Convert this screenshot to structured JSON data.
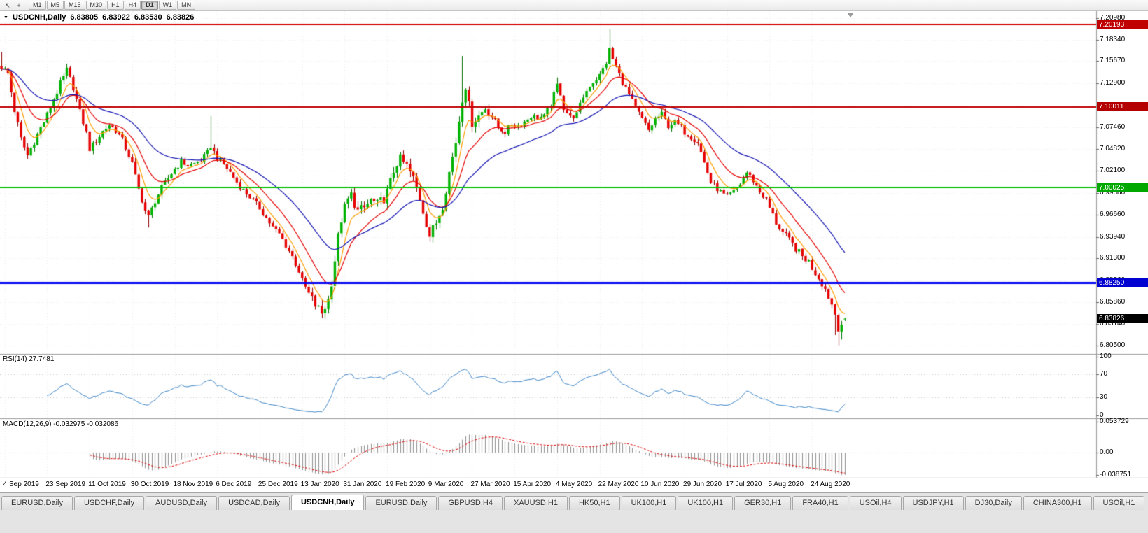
{
  "toolbar": {
    "icons": [
      {
        "name": "cursor-icon",
        "glyph": "↖"
      },
      {
        "name": "crosshair-icon",
        "glyph": "+"
      }
    ],
    "timeframes": [
      "M1",
      "M5",
      "M15",
      "M30",
      "H1",
      "H4",
      "D1",
      "W1",
      "MN"
    ],
    "active_timeframe": "D1"
  },
  "chart_header": {
    "collapse_glyph": "▼",
    "symbol_title": "USDCNH,Daily",
    "open": "6.83805",
    "high": "6.83922",
    "low": "6.83530",
    "close": "6.83826"
  },
  "chart_data": {
    "type": "candlestick",
    "symbol": "USDCNH",
    "period": "Daily",
    "title": "USDCNH,Daily",
    "last_ohlc": {
      "open": 6.83805,
      "high": 6.83922,
      "low": 6.8353,
      "close": 6.83826
    },
    "candle_count": 259,
    "candles_per_date_tick": 13,
    "price_axis_ticks": [
      "7.20980",
      "7.18340",
      "7.15670",
      "7.12900",
      "7.10170",
      "7.07460",
      "7.04820",
      "7.02100",
      "6.99380",
      "6.96660",
      "6.93940",
      "6.91300",
      "6.88560",
      "6.85860",
      "6.83140",
      "6.80500"
    ],
    "date_axis_ticks": [
      "4 Sep 2019",
      "23 Sep 2019",
      "11 Oct 2019",
      "30 Oct 2019",
      "18 Nov 2019",
      "6 Dec 2019",
      "25 Dec 2019",
      "13 Jan 2020",
      "31 Jan 2020",
      "19 Feb 2020",
      "9 Mar 2020",
      "27 Mar 2020",
      "15 Apr 2020",
      "4 May 2020",
      "22 May 2020",
      "10 Jun 2020",
      "29 Jun 2020",
      "17 Jul 2020",
      "5 Aug 2020",
      "24 Aug 2020"
    ],
    "horizontal_levels": [
      {
        "label": "7.20193",
        "price": 7.20193,
        "line_color": "#D40000",
        "badge_color": "#C00000",
        "line_width": 2
      },
      {
        "label": "7.10011",
        "price": 7.10011,
        "line_color": "#C00000",
        "badge_color": "#B40000",
        "line_width": 2
      },
      {
        "label": "7.00025",
        "price": 7.00025,
        "line_color": "#00C000",
        "badge_color": "#00A800",
        "line_width": 2
      },
      {
        "label": "6.88250",
        "price": 6.8825,
        "line_color": "#0000F0",
        "badge_color": "#0000D0",
        "line_width": 3
      },
      {
        "label": "6.83826",
        "price": 6.83826,
        "line_color": null,
        "badge_color": "#000000",
        "line_width": 0,
        "role": "current-price"
      }
    ],
    "moving_averages": [
      {
        "period": 6,
        "color": "#FF9C00"
      },
      {
        "period": 14,
        "color": "#E60000"
      },
      {
        "period": 34,
        "color": "#1414B4"
      }
    ],
    "candle_colors": {
      "up": "#00B200",
      "up_border": "#007000",
      "down": "#E60000",
      "down_border": "#900000"
    },
    "close_anchors": [
      [
        0,
        7.15
      ],
      [
        2,
        7.141
      ],
      [
        4,
        7.096
      ],
      [
        6,
        7.06
      ],
      [
        8,
        7.04
      ],
      [
        10,
        7.058
      ],
      [
        12,
        7.074
      ],
      [
        14,
        7.09
      ],
      [
        16,
        7.11
      ],
      [
        18,
        7.128
      ],
      [
        20,
        7.145
      ],
      [
        22,
        7.124
      ],
      [
        24,
        7.094
      ],
      [
        26,
        7.068
      ],
      [
        27,
        7.048
      ],
      [
        29,
        7.058
      ],
      [
        31,
        7.07
      ],
      [
        33,
        7.078
      ],
      [
        35,
        7.071
      ],
      [
        37,
        7.059
      ],
      [
        40,
        7.03
      ],
      [
        42,
        6.998
      ],
      [
        44,
        6.972
      ],
      [
        45,
        6.964
      ],
      [
        47,
        6.984
      ],
      [
        49,
        7.0
      ],
      [
        51,
        7.012
      ],
      [
        53,
        7.024
      ],
      [
        55,
        7.032
      ],
      [
        57,
        7.028
      ],
      [
        59,
        7.03
      ],
      [
        61,
        7.034
      ],
      [
        63,
        7.043
      ],
      [
        64,
        7.052
      ],
      [
        65,
        7.044
      ],
      [
        66,
        7.037
      ],
      [
        68,
        7.029
      ],
      [
        70,
        7.019
      ],
      [
        72,
        7.007
      ],
      [
        74,
        6.997
      ],
      [
        76,
        6.989
      ],
      [
        79,
        6.975
      ],
      [
        81,
        6.963
      ],
      [
        83,
        6.951
      ],
      [
        85,
        6.943
      ],
      [
        87,
        6.929
      ],
      [
        89,
        6.915
      ],
      [
        91,
        6.897
      ],
      [
        92,
        6.885
      ],
      [
        94,
        6.869
      ],
      [
        96,
        6.855
      ],
      [
        98,
        6.845
      ],
      [
        100,
        6.861
      ],
      [
        101,
        6.884
      ],
      [
        102,
        6.911
      ],
      [
        103,
        6.939
      ],
      [
        104,
        6.961
      ],
      [
        105,
        6.975
      ],
      [
        106,
        6.985
      ],
      [
        107,
        6.991
      ],
      [
        109,
        6.971
      ],
      [
        111,
        6.975
      ],
      [
        113,
        6.985
      ],
      [
        115,
        6.979
      ],
      [
        117,
        6.987
      ],
      [
        118,
        6.995
      ],
      [
        119,
        7.007
      ],
      [
        120,
        7.021
      ],
      [
        121,
        7.031
      ],
      [
        122,
        7.035
      ],
      [
        124,
        7.027
      ],
      [
        126,
        7.011
      ],
      [
        128,
        6.987
      ],
      [
        130,
        6.957
      ],
      [
        131,
        6.941
      ],
      [
        133,
        6.957
      ],
      [
        135,
        6.979
      ],
      [
        137,
        7.019
      ],
      [
        139,
        7.057
      ],
      [
        141,
        7.111
      ],
      [
        142,
        7.127
      ],
      [
        143,
        7.101
      ],
      [
        144,
        7.081
      ],
      [
        146,
        7.089
      ],
      [
        148,
        7.099
      ],
      [
        150,
        7.089
      ],
      [
        152,
        7.075
      ],
      [
        154,
        7.069
      ],
      [
        156,
        7.079
      ],
      [
        158,
        7.077
      ],
      [
        160,
        7.082
      ],
      [
        162,
        7.089
      ],
      [
        164,
        7.087
      ],
      [
        166,
        7.088
      ],
      [
        168,
        7.103
      ],
      [
        170,
        7.127
      ],
      [
        171,
        7.117
      ],
      [
        172,
        7.099
      ],
      [
        174,
        7.087
      ],
      [
        176,
        7.091
      ],
      [
        178,
        7.113
      ],
      [
        180,
        7.127
      ],
      [
        182,
        7.135
      ],
      [
        183,
        7.139
      ],
      [
        185,
        7.155
      ],
      [
        186,
        7.171
      ],
      [
        187,
        7.159
      ],
      [
        188,
        7.149
      ],
      [
        190,
        7.131
      ],
      [
        192,
        7.115
      ],
      [
        194,
        7.099
      ],
      [
        196,
        7.085
      ],
      [
        198,
        7.071
      ],
      [
        200,
        7.085
      ],
      [
        202,
        7.091
      ],
      [
        204,
        7.077
      ],
      [
        206,
        7.081
      ],
      [
        208,
        7.075
      ],
      [
        209,
        7.069
      ],
      [
        211,
        7.063
      ],
      [
        213,
        7.057
      ],
      [
        215,
        7.031
      ],
      [
        217,
        7.007
      ],
      [
        219,
        6.999
      ],
      [
        221,
        6.991
      ],
      [
        222,
        6.989
      ],
      [
        224,
        6.995
      ],
      [
        226,
        7.005
      ],
      [
        228,
        7.019
      ],
      [
        230,
        7.009
      ],
      [
        232,
        6.995
      ],
      [
        234,
        6.985
      ],
      [
        235,
        6.975
      ],
      [
        237,
        6.957
      ],
      [
        239,
        6.945
      ],
      [
        241,
        6.935
      ],
      [
        243,
        6.925
      ],
      [
        245,
        6.915
      ],
      [
        247,
        6.909
      ],
      [
        248,
        6.901
      ],
      [
        250,
        6.889
      ],
      [
        252,
        6.875
      ],
      [
        254,
        6.856
      ],
      [
        255,
        6.844
      ],
      [
        256,
        6.827
      ],
      [
        257,
        6.832
      ],
      [
        258,
        6.8383
      ]
    ],
    "wick_overrides": [
      {
        "i": 0,
        "high": 7.168
      },
      {
        "i": 45,
        "low": 6.951
      },
      {
        "i": 64,
        "high": 7.089
      },
      {
        "i": 98,
        "low": 6.842
      },
      {
        "i": 141,
        "high": 7.163
      },
      {
        "i": 170,
        "high": 7.1365
      },
      {
        "i": 186,
        "high": 7.1965
      },
      {
        "i": 255,
        "low": 6.818
      },
      {
        "i": 256,
        "low": 6.8051
      },
      {
        "i": 257,
        "low": 6.8125
      }
    ]
  },
  "rsi": {
    "label": "RSI(14) 27.7481",
    "period": 14,
    "value": 27.7481,
    "axis_labels": [
      "100",
      "70",
      "30",
      "0"
    ],
    "level_lines": [
      70,
      30
    ],
    "line_color": "#3E86C8"
  },
  "macd": {
    "label": "MACD(12,26,9) -0.032975 -0.032086",
    "fast": 12,
    "slow": 26,
    "signal": 9,
    "macd_value": -0.032975,
    "signal_value": -0.032086,
    "axis_labels": [
      "0.053729",
      "0.00",
      "-0.038751"
    ],
    "histogram_color": "#909090",
    "signal_color": "#E00000"
  },
  "tabs": {
    "items": [
      "EURUSD,Daily",
      "USDCHF,Daily",
      "AUDUSD,Daily",
      "USDCAD,Daily",
      "USDCNH,Daily",
      "EURUSD,Daily",
      "GBPUSD,H4",
      "XAUUSD,H1",
      "HK50,H1",
      "UK100,H1",
      "UK100,H1",
      "GER30,H1",
      "FRA40,H1",
      "USOil,H4",
      "USDJPY,H1",
      "DJ30,Daily",
      "CHINA300,H1",
      "USOil,H1"
    ],
    "active_index": 4
  }
}
